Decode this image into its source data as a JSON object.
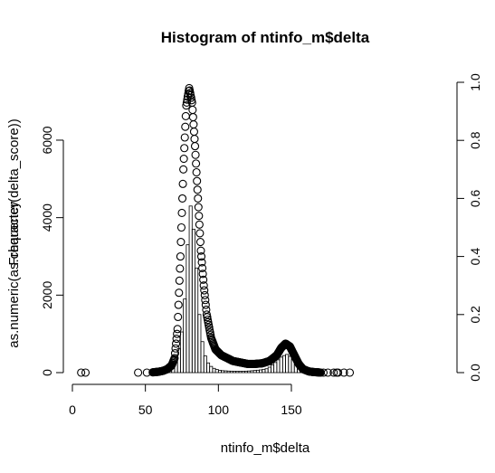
{
  "chart_data": {
    "type": "histogram",
    "title": "Histogram of ntinfo_m$delta",
    "xlabel": "ntinfo_m$delta",
    "ylabel_left_overprinted": [
      "as.numeric(as.character(delta_score))",
      "Frequency"
    ],
    "xlim": [
      0,
      190
    ],
    "ylim_left": [
      0,
      7400
    ],
    "ylim_right": [
      0,
      1.0
    ],
    "x_ticks": [
      0,
      50,
      100,
      150
    ],
    "y_ticks_left": [
      0,
      2000,
      4000,
      6000
    ],
    "y_ticks_right": [
      0.0,
      0.2,
      0.4,
      0.6,
      0.8,
      1.0
    ],
    "bin_width": 2,
    "bins": {
      "x_start": [
        56,
        58,
        60,
        62,
        64,
        66,
        68,
        70,
        72,
        74,
        76,
        78,
        80,
        82,
        84,
        86,
        88,
        90,
        92,
        94,
        96,
        98,
        100,
        102,
        104,
        106,
        108,
        110,
        112,
        114,
        116,
        118,
        120,
        122,
        124,
        126,
        128,
        130,
        132,
        134,
        136,
        138,
        140,
        142,
        144,
        146,
        148,
        150,
        152,
        154,
        156,
        158,
        160,
        162
      ],
      "counts": [
        5,
        10,
        20,
        40,
        70,
        120,
        210,
        380,
        620,
        1050,
        1900,
        3300,
        4300,
        3700,
        2700,
        1500,
        800,
        430,
        250,
        160,
        110,
        80,
        60,
        50,
        45,
        40,
        38,
        36,
        35,
        34,
        35,
        38,
        42,
        48,
        55,
        62,
        70,
        85,
        100,
        140,
        200,
        260,
        330,
        400,
        440,
        470,
        420,
        330,
        220,
        130,
        65,
        30,
        12,
        5
      ]
    },
    "overlay_points": {
      "x": [
        6,
        9,
        45,
        51,
        55,
        59,
        62,
        65,
        68,
        70,
        72,
        74,
        76,
        78,
        80,
        82,
        84,
        86,
        88,
        90,
        92,
        95,
        98,
        102,
        106,
        110,
        115,
        120,
        125,
        130,
        135,
        140,
        143,
        146,
        149,
        152,
        155,
        158,
        162,
        165,
        168,
        170,
        172,
        175,
        179,
        181,
        182,
        186,
        190
      ],
      "y": [
        0.0,
        0.0,
        0.0,
        0.0,
        0.001,
        0.003,
        0.006,
        0.012,
        0.025,
        0.05,
        0.15,
        0.4,
        0.7,
        0.92,
        0.98,
        0.93,
        0.78,
        0.6,
        0.42,
        0.3,
        0.2,
        0.12,
        0.08,
        0.06,
        0.05,
        0.04,
        0.035,
        0.03,
        0.03,
        0.032,
        0.04,
        0.06,
        0.085,
        0.1,
        0.09,
        0.06,
        0.03,
        0.012,
        0.004,
        0.002,
        0.001,
        0.0,
        0.0,
        0.0,
        0.0,
        0.0,
        0.0,
        0.0,
        0.0
      ]
    }
  }
}
